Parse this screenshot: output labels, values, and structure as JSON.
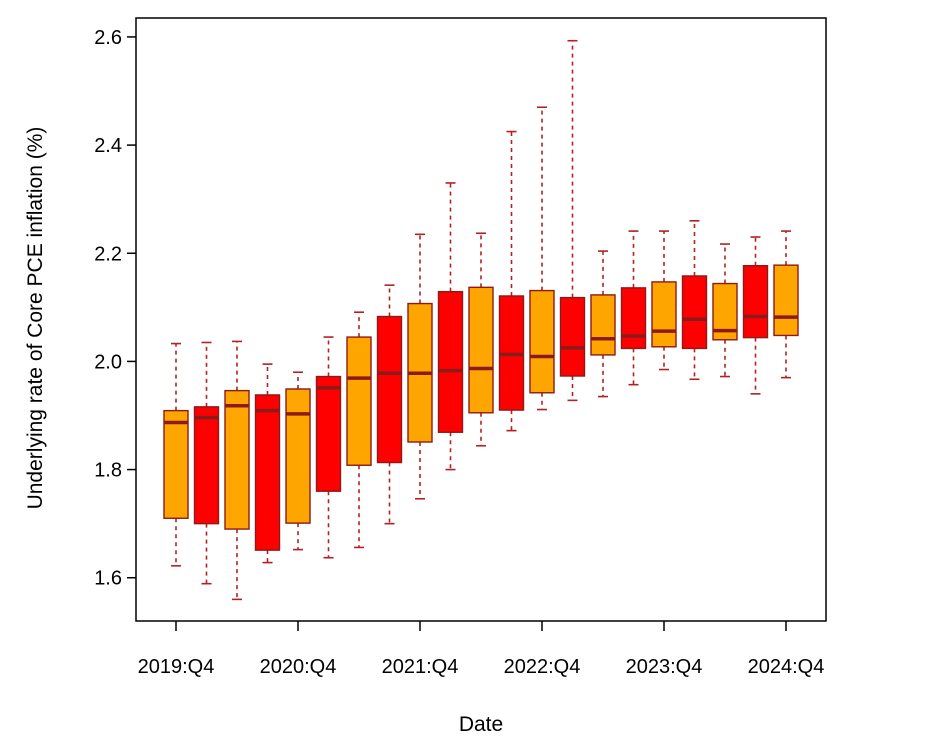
{
  "chart_data": {
    "type": "box",
    "title": "",
    "xlabel": "Date",
    "ylabel": "Underlying rate of Core PCE inflation (%)",
    "ylim": [
      1.52,
      2.635
    ],
    "y_ticks": [
      "1.6",
      "1.8",
      "2.0",
      "2.2",
      "2.4",
      "2.6"
    ],
    "x_tick_labels": [
      "2019:Q4",
      "2020:Q4",
      "2021:Q4",
      "2022:Q4",
      "2023:Q4",
      "2024:Q4"
    ],
    "colors": {
      "orange": "#FFA500",
      "red": "#FF0000",
      "border": "#8B1A1A",
      "whisker": "#B22222"
    },
    "boxes": [
      {
        "color": "orange",
        "min": 1.622,
        "q1": 1.71,
        "median": 1.887,
        "q3": 1.909,
        "max": 2.033
      },
      {
        "color": "red",
        "min": 1.589,
        "q1": 1.7,
        "median": 1.896,
        "q3": 1.916,
        "max": 2.035
      },
      {
        "color": "orange",
        "min": 1.56,
        "q1": 1.69,
        "median": 1.918,
        "q3": 1.946,
        "max": 2.037
      },
      {
        "color": "red",
        "min": 1.628,
        "q1": 1.651,
        "median": 1.909,
        "q3": 1.938,
        "max": 1.995
      },
      {
        "color": "orange",
        "min": 1.652,
        "q1": 1.701,
        "median": 1.903,
        "q3": 1.949,
        "max": 1.98
      },
      {
        "color": "red",
        "min": 1.637,
        "q1": 1.76,
        "median": 1.951,
        "q3": 1.972,
        "max": 2.045
      },
      {
        "color": "orange",
        "min": 1.656,
        "q1": 1.808,
        "median": 1.969,
        "q3": 2.045,
        "max": 2.091
      },
      {
        "color": "red",
        "min": 1.7,
        "q1": 1.813,
        "median": 1.978,
        "q3": 2.083,
        "max": 2.141
      },
      {
        "color": "orange",
        "min": 1.746,
        "q1": 1.851,
        "median": 1.978,
        "q3": 2.107,
        "max": 2.235
      },
      {
        "color": "red",
        "min": 1.8,
        "q1": 1.869,
        "median": 1.983,
        "q3": 2.129,
        "max": 2.33
      },
      {
        "color": "orange",
        "min": 1.844,
        "q1": 1.905,
        "median": 1.987,
        "q3": 2.137,
        "max": 2.237
      },
      {
        "color": "red",
        "min": 1.872,
        "q1": 1.91,
        "median": 2.013,
        "q3": 2.121,
        "max": 2.425
      },
      {
        "color": "orange",
        "min": 1.911,
        "q1": 1.942,
        "median": 2.009,
        "q3": 2.131,
        "max": 2.47
      },
      {
        "color": "red",
        "min": 1.928,
        "q1": 1.973,
        "median": 2.025,
        "q3": 2.118,
        "max": 2.593
      },
      {
        "color": "orange",
        "min": 1.935,
        "q1": 2.012,
        "median": 2.042,
        "q3": 2.123,
        "max": 2.204
      },
      {
        "color": "red",
        "min": 1.957,
        "q1": 2.024,
        "median": 2.047,
        "q3": 2.136,
        "max": 2.241
      },
      {
        "color": "orange",
        "min": 1.985,
        "q1": 2.027,
        "median": 2.056,
        "q3": 2.147,
        "max": 2.241
      },
      {
        "color": "red",
        "min": 1.967,
        "q1": 2.024,
        "median": 2.078,
        "q3": 2.158,
        "max": 2.26
      },
      {
        "color": "orange",
        "min": 1.972,
        "q1": 2.04,
        "median": 2.057,
        "q3": 2.144,
        "max": 2.217
      },
      {
        "color": "red",
        "min": 1.94,
        "q1": 2.044,
        "median": 2.083,
        "q3": 2.177,
        "max": 2.23
      },
      {
        "color": "orange",
        "min": 1.97,
        "q1": 2.048,
        "median": 2.082,
        "q3": 2.178,
        "max": 2.241
      }
    ]
  }
}
